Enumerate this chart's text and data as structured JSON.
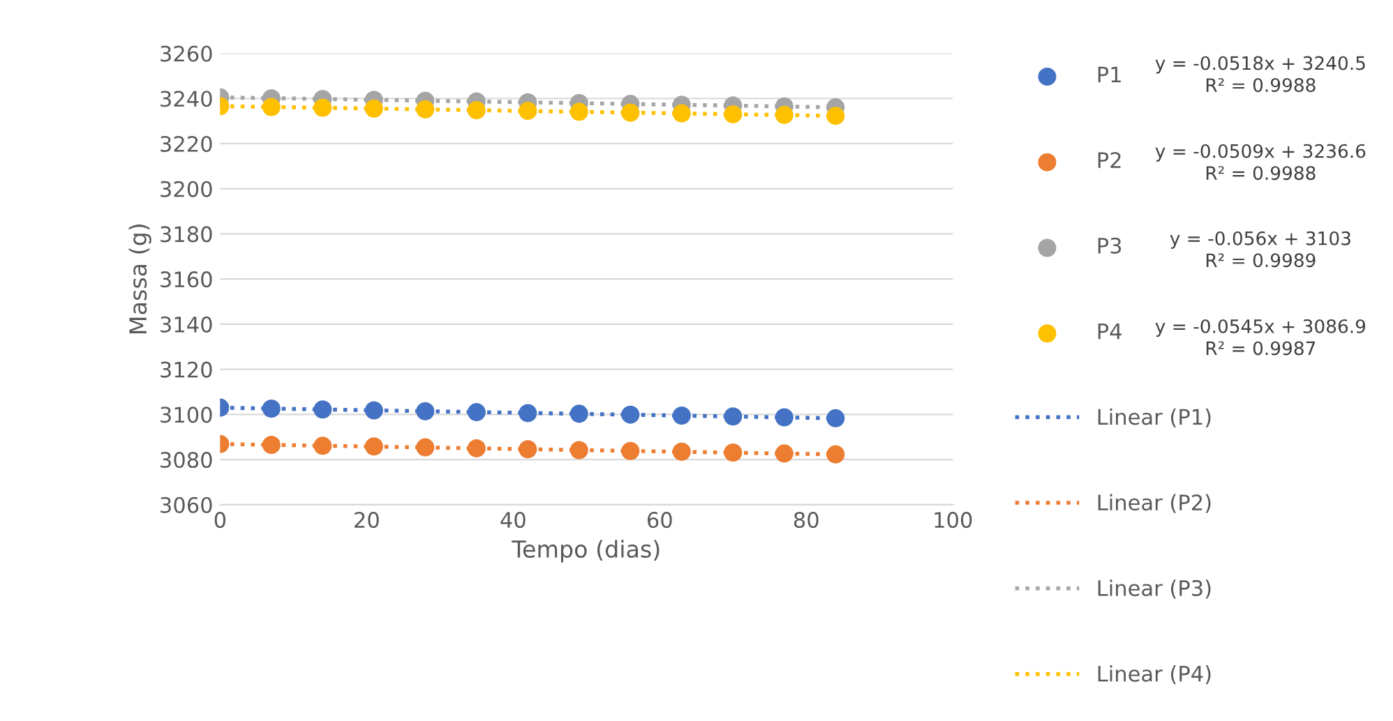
{
  "chart_data": {
    "type": "scatter",
    "xlabel": "Tempo (dias)",
    "ylabel": "Massa (g)",
    "xlim": [
      0,
      100
    ],
    "xticks": [
      0,
      20,
      40,
      60,
      80,
      100
    ],
    "ylim": [
      3060,
      3260
    ],
    "yticks": [
      3060,
      3080,
      3100,
      3120,
      3140,
      3160,
      3180,
      3200,
      3220,
      3240,
      3260
    ],
    "grid": "y",
    "legend": "right",
    "series": [
      {
        "name": "P1",
        "marker": "circle",
        "color": "#4472c4",
        "x": [
          0,
          7,
          14,
          21,
          28,
          35,
          42,
          49,
          56,
          63,
          70,
          77,
          84
        ],
        "values": [
          3103,
          3102.6,
          3102.2,
          3101.8,
          3101.4,
          3101.0,
          3100.6,
          3100.3,
          3099.9,
          3099.5,
          3099.1,
          3098.7,
          3098.3
        ]
      },
      {
        "name": "P2",
        "marker": "circle",
        "color": "#ed7d31",
        "x": [
          0,
          7,
          14,
          21,
          28,
          35,
          42,
          49,
          56,
          63,
          70,
          77,
          84
        ],
        "values": [
          3086.9,
          3086.5,
          3086.1,
          3085.8,
          3085.4,
          3085.0,
          3084.6,
          3084.2,
          3083.8,
          3083.5,
          3083.1,
          3082.7,
          3082.3
        ]
      },
      {
        "name": "P3",
        "marker": "circle",
        "color": "#a5a5a5",
        "x": [
          0,
          7,
          14,
          21,
          28,
          35,
          42,
          49,
          56,
          63,
          70,
          77,
          84
        ],
        "values": [
          3240.5,
          3240.1,
          3239.8,
          3239.4,
          3239.0,
          3238.7,
          3238.3,
          3238.0,
          3237.6,
          3237.2,
          3236.9,
          3236.5,
          3236.1
        ]
      },
      {
        "name": "P4",
        "marker": "circle",
        "color": "#ffc000",
        "x": [
          0,
          7,
          14,
          21,
          28,
          35,
          42,
          49,
          56,
          63,
          70,
          77,
          84
        ],
        "values": [
          3236.6,
          3236.2,
          3235.9,
          3235.5,
          3235.2,
          3234.8,
          3234.5,
          3234.1,
          3233.7,
          3233.4,
          3233.0,
          3232.7,
          3232.3
        ]
      },
      {
        "name": "Linear (P1)",
        "type": "line",
        "line_style": "dotted",
        "color": "#4472c4",
        "x": [
          0,
          84
        ],
        "values": [
          3103,
          3098.3
        ]
      },
      {
        "name": "Linear (P2)",
        "type": "line",
        "line_style": "dotted",
        "color": "#ed7d31",
        "x": [
          0,
          84
        ],
        "values": [
          3086.9,
          3082.3
        ]
      },
      {
        "name": "Linear (P3)",
        "type": "line",
        "line_style": "dotted",
        "color": "#a5a5a5",
        "x": [
          0,
          84
        ],
        "values": [
          3240.5,
          3236.1
        ]
      },
      {
        "name": "Linear (P4)",
        "type": "line",
        "line_style": "dotted",
        "color": "#ffc000",
        "x": [
          0,
          84
        ],
        "values": [
          3236.6,
          3232.3
        ]
      }
    ],
    "annotations": [
      "y = -0.0518x + 3240.5\nR² = 0.9988",
      "y = -0.0509x + 3236.6\nR² = 0.9988",
      "y = -0.056x + 3103\nR² = 0.9989",
      "y = -0.0545x + 3086.9\nR² = 0.9987"
    ]
  }
}
